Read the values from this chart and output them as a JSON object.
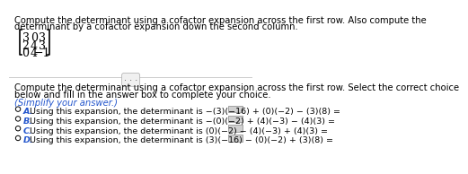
{
  "title_line1": "Compute the determinant using a cofactor expansion across the first row. Also compute the",
  "title_line2": "determinant by a cofactor expansion down the second column.",
  "matrix_rows": [
    [
      "3",
      "0",
      "3"
    ],
    [
      "2",
      "4",
      "3"
    ],
    [
      "0",
      "4",
      "−1"
    ]
  ],
  "question_line1": "Compute the determinant using a cofactor expansion across the first row. Select the correct choice",
  "question_line2": "below and fill in the answer box to complete your choice.",
  "simplify": "(Simplify your answer.)",
  "option_a": "Using this expansion, the determinant is −(3)(−16) + (0)(−2) − (3)(8) =",
  "option_b": "Using this expansion, the determinant is −(0)(−2) + (4)(−3) − (4)(3) =",
  "option_c": "Using this expansion, the determinant is (0)(−2) − (4)(−3) + (4)(3) =",
  "option_d": "Using this expansion, the determinant is (3)(−16) − (0)(−2) + (3)(8) =",
  "option_labels": [
    "A.",
    "B.",
    "C.",
    "D."
  ],
  "bg_color": "#ffffff",
  "text_color": "#000000",
  "simplify_color": "#2255cc",
  "option_label_color": "#2255cc",
  "separator_color": "#cccccc",
  "answer_box_color": "#d0d0d0",
  "font_size_title": 7.2,
  "font_size_body": 7.2,
  "font_size_simplify": 7.2,
  "font_size_options": 6.8,
  "font_size_matrix": 9.0
}
